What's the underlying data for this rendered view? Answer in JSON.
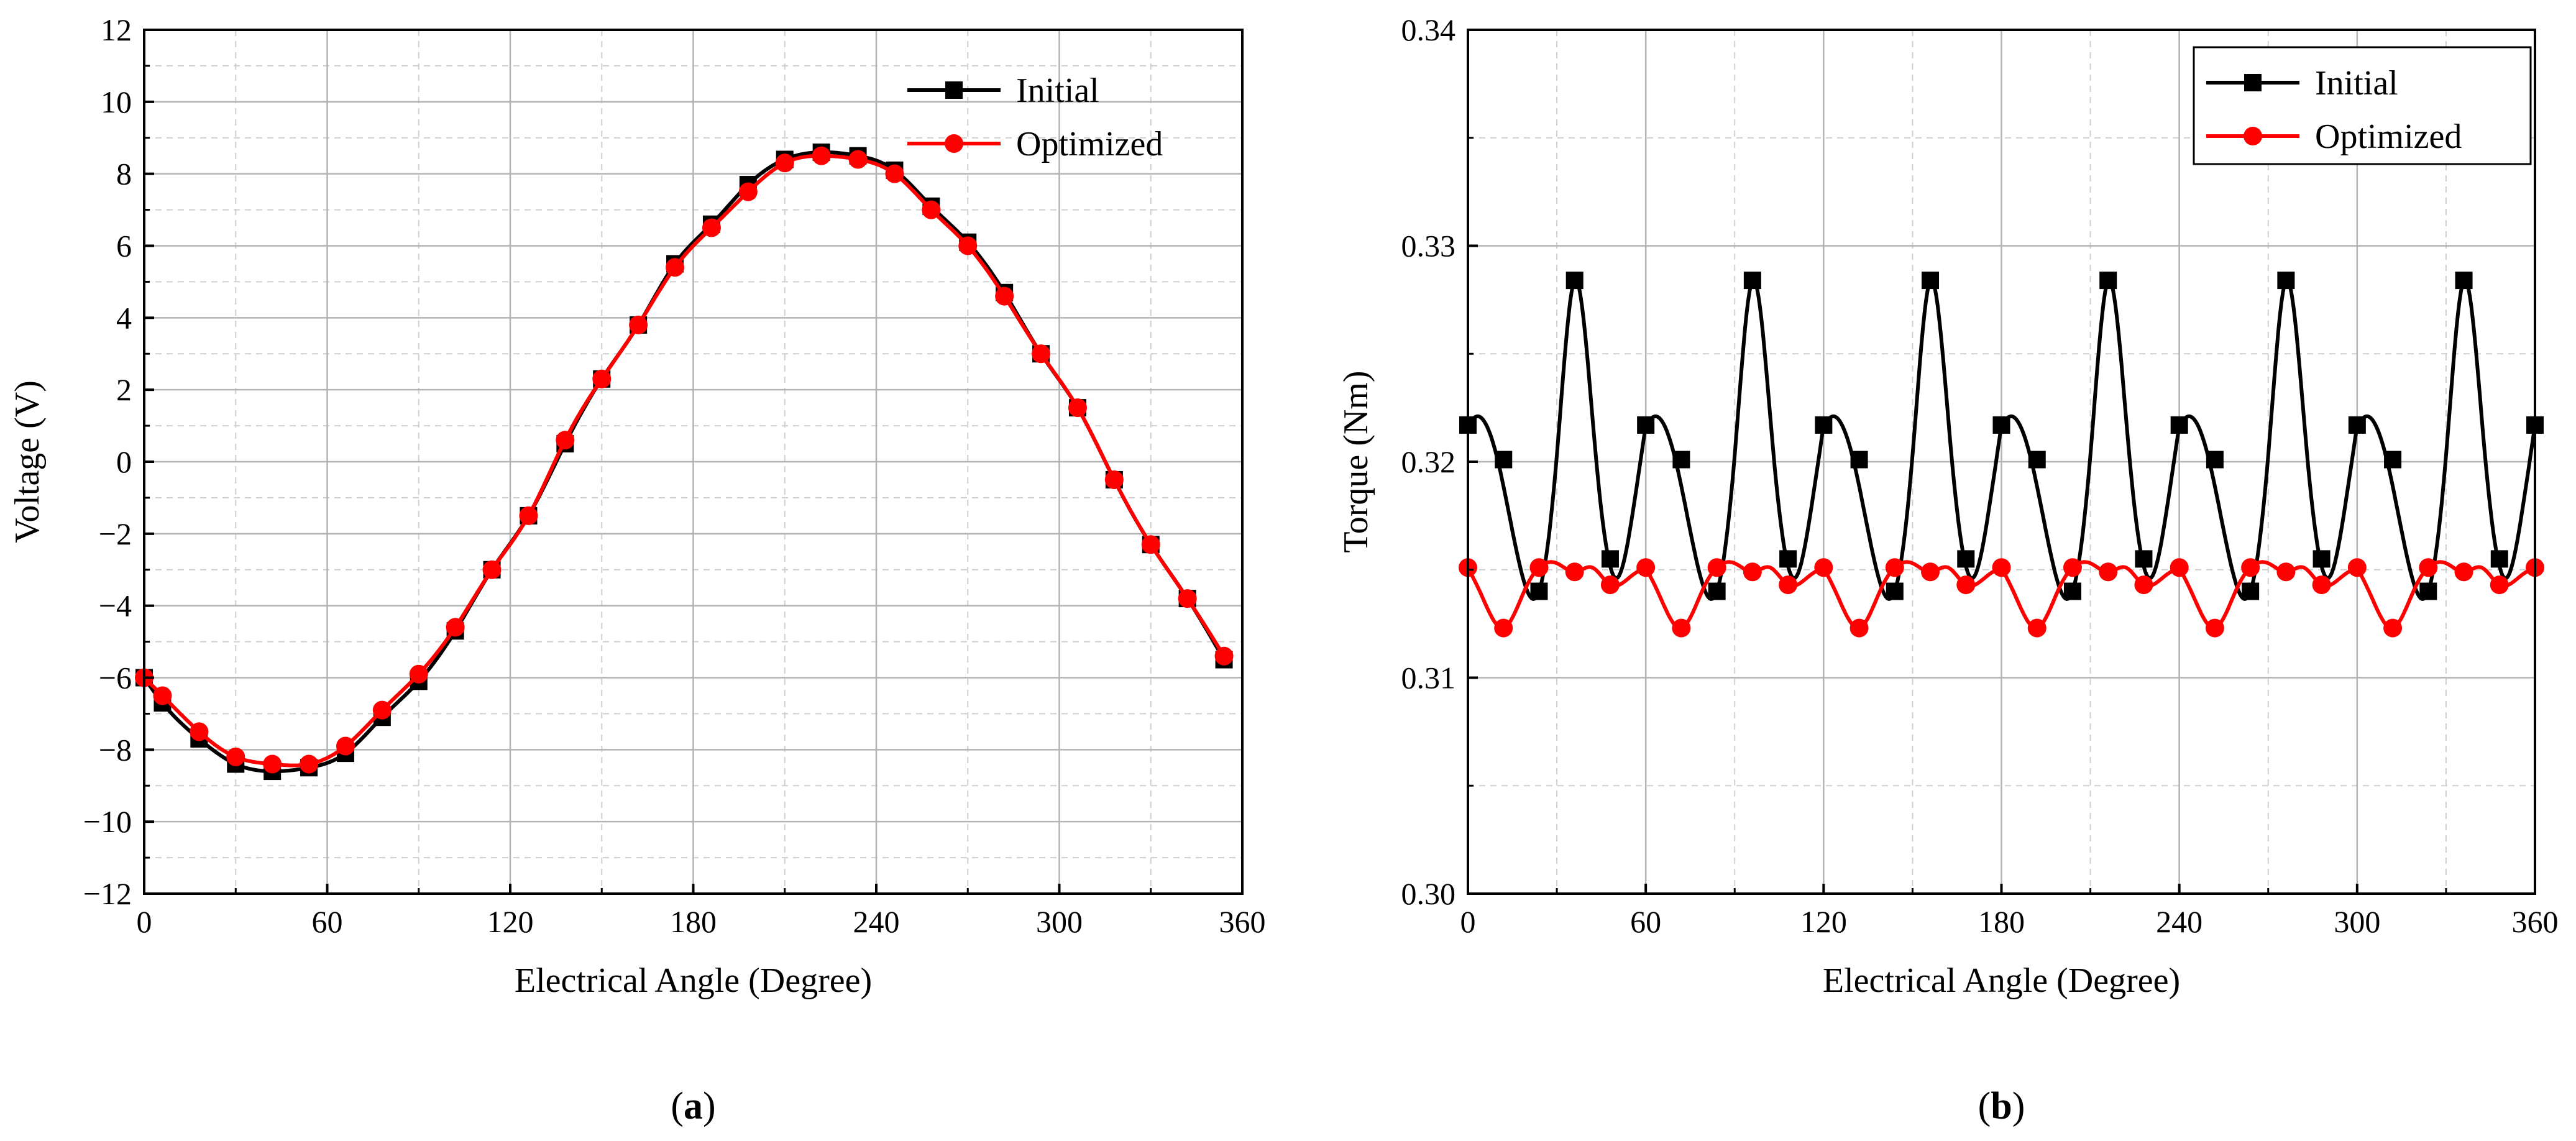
{
  "chart_data": [
    {
      "id": "a",
      "panel_label": "(a)",
      "panel_letter": "a",
      "type": "line",
      "title": "",
      "xlabel": "Electrical Angle (Degree)",
      "ylabel": "Voltage (V)",
      "xlim": [
        0,
        360
      ],
      "ylim": [
        -12,
        12
      ],
      "xticks": [
        0,
        60,
        120,
        180,
        240,
        300,
        360
      ],
      "yticks": [
        -12,
        -10,
        -8,
        -6,
        -4,
        -2,
        0,
        2,
        4,
        6,
        8,
        10,
        12
      ],
      "xtick_labels": [
        "0",
        "60",
        "120",
        "180",
        "240",
        "300",
        "360"
      ],
      "ytick_labels": [
        "−12",
        "−10",
        "−8",
        "−6",
        "−4",
        "−2",
        "0",
        "2",
        "4",
        "6",
        "8",
        "10",
        "12"
      ],
      "grid": true,
      "legend_position": "top-right",
      "series": [
        {
          "name": "Initial",
          "color": "#000000",
          "marker": "square",
          "x": [
            0,
            6,
            18,
            30,
            42,
            54,
            66,
            78,
            90,
            102,
            114,
            126,
            138,
            150,
            162,
            174,
            186,
            198,
            210,
            222,
            234,
            246,
            258,
            270,
            282,
            294,
            306,
            318,
            330,
            342,
            354
          ],
          "y": [
            -6.0,
            -6.7,
            -7.7,
            -8.4,
            -8.6,
            -8.5,
            -8.1,
            -7.1,
            -6.1,
            -4.7,
            -3.0,
            -1.5,
            0.5,
            2.3,
            3.8,
            5.5,
            6.6,
            7.7,
            8.4,
            8.6,
            8.5,
            8.1,
            7.1,
            6.1,
            4.7,
            3.0,
            1.5,
            -0.5,
            -2.3,
            -3.8,
            -5.5
          ]
        },
        {
          "name": "Optimized",
          "color": "#ff0000",
          "marker": "circle",
          "x": [
            0,
            6,
            18,
            30,
            42,
            54,
            66,
            78,
            90,
            102,
            114,
            126,
            138,
            150,
            162,
            174,
            186,
            198,
            210,
            222,
            234,
            246,
            258,
            270,
            282,
            294,
            306,
            318,
            330,
            342,
            354
          ],
          "y": [
            -6.0,
            -6.5,
            -7.5,
            -8.2,
            -8.4,
            -8.4,
            -7.9,
            -6.9,
            -5.9,
            -4.6,
            -3.0,
            -1.5,
            0.6,
            2.3,
            3.8,
            5.4,
            6.5,
            7.5,
            8.3,
            8.5,
            8.4,
            8.0,
            7.0,
            6.0,
            4.6,
            3.0,
            1.5,
            -0.5,
            -2.3,
            -3.8,
            -5.4
          ]
        }
      ]
    },
    {
      "id": "b",
      "panel_label": "(b)",
      "panel_letter": "b",
      "type": "line",
      "title": "",
      "xlabel": "Electrical Angle (Degree)",
      "ylabel": "Torque (Nm)",
      "xlim": [
        0,
        360
      ],
      "ylim": [
        0.3,
        0.34
      ],
      "xticks": [
        0,
        60,
        120,
        180,
        240,
        300,
        360
      ],
      "yticks": [
        0.3,
        0.31,
        0.32,
        0.33,
        0.34
      ],
      "xtick_labels": [
        "0",
        "60",
        "120",
        "180",
        "240",
        "300",
        "360"
      ],
      "ytick_labels": [
        "0.30",
        "0.31",
        "0.32",
        "0.33",
        "0.34"
      ],
      "grid": true,
      "legend_position": "top-right",
      "series": [
        {
          "name": "Initial",
          "color": "#000000",
          "marker": "square",
          "period": 60,
          "pattern_x": [
            0,
            3,
            10,
            17,
            24,
            30,
            36,
            43,
            50,
            56,
            60
          ],
          "pattern_y": [
            0.3217,
            0.3221,
            0.3201,
            0.3155,
            0.314,
            0.3203,
            0.3284,
            0.3205,
            0.3146,
            0.318,
            0.3217
          ],
          "marker_x": [
            0,
            12,
            24,
            36,
            48,
            60,
            72,
            84,
            96,
            108,
            120,
            132,
            144,
            156,
            168,
            180,
            192,
            204,
            216,
            228,
            240,
            252,
            264,
            276,
            288,
            300,
            312,
            324,
            336,
            348,
            360
          ],
          "marker_y": [
            0.3217,
            0.3201,
            0.314,
            0.3284,
            0.3155,
            0.3217,
            0.3201,
            0.314,
            0.3284,
            0.3155,
            0.3217,
            0.3201,
            0.314,
            0.3284,
            0.3155,
            0.3217,
            0.3201,
            0.314,
            0.3284,
            0.3155,
            0.3217,
            0.3201,
            0.314,
            0.3284,
            0.3155,
            0.3217,
            0.3201,
            0.314,
            0.3284,
            0.3155,
            0.3217
          ]
        },
        {
          "name": "Optimized",
          "color": "#ff0000",
          "marker": "circle",
          "period": 60,
          "pattern_x": [
            0,
            4,
            12,
            20,
            24,
            30,
            36,
            42,
            48,
            56,
            60
          ],
          "pattern_y": [
            0.3151,
            0.314,
            0.3123,
            0.3143,
            0.3151,
            0.3153,
            0.3149,
            0.3151,
            0.3143,
            0.3148,
            0.3151
          ],
          "marker_x": [
            0,
            12,
            24,
            36,
            48,
            60,
            72,
            84,
            96,
            108,
            120,
            132,
            144,
            156,
            168,
            180,
            192,
            204,
            216,
            228,
            240,
            252,
            264,
            276,
            288,
            300,
            312,
            324,
            336,
            348,
            360
          ],
          "marker_y": [
            0.3151,
            0.3123,
            0.3151,
            0.3149,
            0.3143,
            0.3151,
            0.3123,
            0.3151,
            0.3149,
            0.3143,
            0.3151,
            0.3123,
            0.3151,
            0.3149,
            0.3143,
            0.3151,
            0.3123,
            0.3151,
            0.3149,
            0.3143,
            0.3151,
            0.3123,
            0.3151,
            0.3149,
            0.3143,
            0.3151,
            0.3123,
            0.3151,
            0.3149,
            0.3143,
            0.3151
          ]
        }
      ]
    }
  ]
}
